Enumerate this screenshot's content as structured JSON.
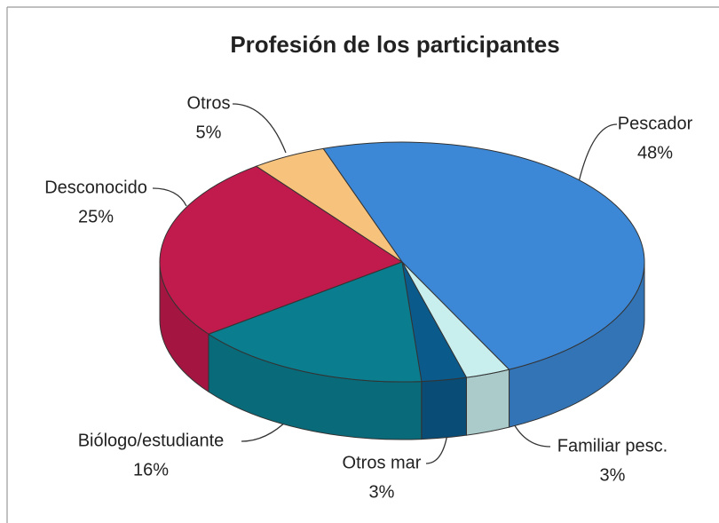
{
  "chart_data": {
    "type": "pie3d",
    "title": "Profesión de los participantes",
    "categories": [
      "Pescador",
      "Familiar pesc.",
      "Otros mar",
      "Biólogo/estudiante",
      "Desconocido",
      "Otros"
    ],
    "values": [
      48,
      3,
      3,
      16,
      25,
      5
    ],
    "value_labels": [
      "48%",
      "3%",
      "3%",
      "16%",
      "25%",
      "5%"
    ],
    "colors": [
      "#3c88d6",
      "#c9eeee",
      "#0b5a8c",
      "#0a7d8e",
      "#c11a4c",
      "#f7c27c"
    ]
  }
}
